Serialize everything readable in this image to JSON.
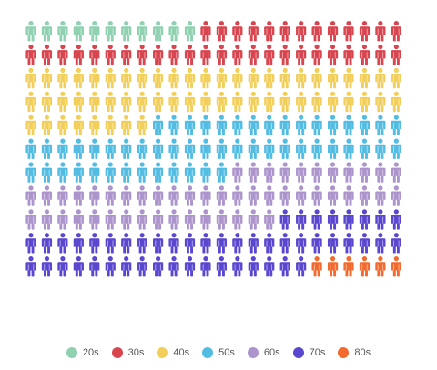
{
  "chart_data": {
    "type": "pictograph",
    "columns": 24,
    "categories": [
      "20s",
      "30s",
      "40s",
      "50s",
      "60s",
      "70s",
      "80s"
    ],
    "values": [
      11,
      37,
      56,
      53,
      51,
      50,
      6
    ],
    "colors": [
      "#8fd1b0",
      "#d9454f",
      "#f2cf5b",
      "#52bce3",
      "#ac94cc",
      "#5a47cf",
      "#f26a2e"
    ],
    "icon": "person-icon"
  }
}
